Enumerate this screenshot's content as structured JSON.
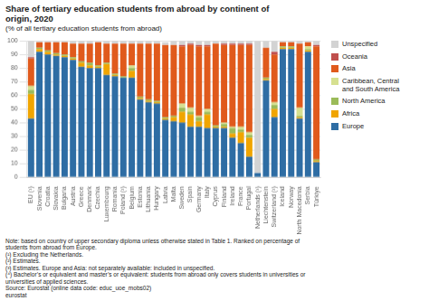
{
  "chart_data": {
    "type": "bar",
    "stacked": true,
    "title": "Share of tertiary education students from abroad by continent of\norigin, 2020",
    "subtitle": "(% of all tertiary education students from abroad)",
    "annotations": [
      "Note: based on country of upper secondary diploma unless otherwise stated in Table 1. Ranked on percentage of",
      "students from abroad from Europe.",
      "(¹) Excluding the Netherlands.",
      "(²) Estimates.",
      "(³) Estimates. Europe and Asia: not separately available: included in unspecified.",
      "(⁴) Bachelor’s or equivalent and master’s or equivalent: students from abroad only covers students in universities or",
      "universities of applied sciences.",
      "Source: Eurostat (online data code: educ_uoe_mobs02)",
      "eurostat"
    ],
    "categories": [
      "EU (¹)",
      "Slovenia",
      "Croatia",
      "Slovakia",
      "Bulgaria",
      "Austria",
      "Greece",
      "Denmark",
      "Czechia",
      "Luxembourg",
      "Romania",
      "Poland (²)",
      "Belgium",
      "Estonia",
      "Lithuania",
      "Hungary",
      "Latvia",
      "Malta",
      "Sweden",
      "Spain",
      "Germany",
      "Italy",
      "Cyprus",
      "Finland",
      "Ireland",
      "France",
      "Portugal",
      "Netherlands (³)",
      "Liechtenstein",
      "Switzerland (²)",
      "Iceland",
      "Norway",
      "North Macedonia",
      "Serbia",
      "Türkiye"
    ],
    "series": [
      {
        "name": "Europe",
        "color": "#2e6da4",
        "values": [
          43,
          92,
          90,
          89,
          88,
          86,
          81,
          80,
          80,
          75,
          74,
          73,
          73,
          57,
          55,
          54,
          42,
          41,
          40,
          37,
          37,
          36,
          36,
          36,
          29,
          25,
          15,
          3,
          71,
          44,
          94,
          94,
          43,
          92,
          11
        ]
      },
      {
        "name": "Africa",
        "color": "#f0a500",
        "values": [
          18,
          2,
          2,
          1,
          1,
          1,
          3,
          2,
          1,
          8,
          1,
          0,
          5,
          1,
          1,
          1,
          1,
          3,
          8,
          9,
          4,
          10,
          1,
          1,
          3,
          8,
          14,
          0,
          1,
          6,
          1,
          1,
          1,
          1,
          1
        ]
      },
      {
        "name": "North America",
        "color": "#9bbb59",
        "values": [
          3,
          1,
          1,
          1,
          1,
          1,
          1,
          2,
          1,
          1,
          1,
          1,
          2,
          1,
          1,
          1,
          1,
          1,
          3,
          2,
          3,
          2,
          1,
          2,
          4,
          2,
          2,
          0,
          1,
          3,
          1,
          1,
          1,
          1,
          1
        ]
      },
      {
        "name": "Caribbean, Central\nand South America",
        "color": "#d6e090",
        "values": [
          3,
          0,
          0,
          0,
          0,
          0,
          0,
          0,
          0,
          0,
          0,
          0,
          2,
          0,
          0,
          0,
          0,
          0,
          3,
          3,
          1,
          2,
          0,
          1,
          1,
          2,
          2,
          0,
          0,
          2,
          0,
          0,
          6,
          2,
          0
        ]
      },
      {
        "name": "Asia",
        "color": "#e05a1c",
        "values": [
          20,
          4,
          6,
          8,
          9,
          10,
          13,
          14,
          17,
          14,
          22,
          24,
          16,
          39,
          41,
          42,
          53,
          52,
          42,
          46,
          51,
          46,
          60,
          57,
          60,
          60,
          64,
          0,
          22,
          35,
          3,
          3,
          47,
          3,
          83
        ]
      },
      {
        "name": "Oceania",
        "color": "#c0504d",
        "values": [
          1,
          0,
          0,
          0,
          0,
          0,
          0,
          0,
          0,
          0,
          0,
          0,
          0,
          0,
          0,
          0,
          0,
          0,
          1,
          1,
          1,
          1,
          0,
          1,
          1,
          1,
          1,
          0,
          0,
          2,
          0,
          0,
          0,
          0,
          1
        ]
      },
      {
        "name": "Unspecified",
        "color": "#d3d3d3",
        "values": [
          12,
          1,
          1,
          1,
          1,
          2,
          2,
          2,
          1,
          2,
          2,
          2,
          2,
          2,
          2,
          2,
          2,
          3,
          3,
          2,
          3,
          3,
          2,
          2,
          2,
          2,
          2,
          97,
          5,
          8,
          1,
          1,
          2,
          1,
          3
        ]
      }
    ],
    "ylim": [
      0,
      100
    ],
    "yticks": [
      0,
      10,
      20,
      30,
      40,
      50,
      60,
      70,
      80,
      90,
      100
    ],
    "grid": true,
    "legend": "right"
  }
}
